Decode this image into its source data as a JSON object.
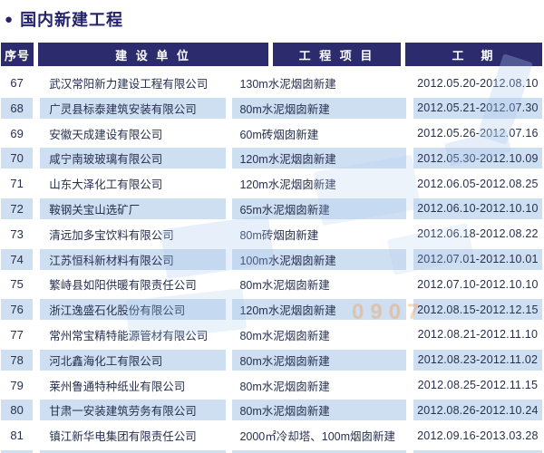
{
  "page": {
    "bullet": "●",
    "title": "国内新建工程"
  },
  "table": {
    "headers": [
      {
        "label": "序号"
      },
      {
        "label": "建 设 单 位"
      },
      {
        "label": "工 程 项 目"
      },
      {
        "label": "工　期"
      }
    ],
    "rows": [
      {
        "no": "67",
        "company": "武汉常阳新力建设工程有限公司",
        "project": "130m水泥烟囱新建",
        "period": "2012.05.20-2012.08.10"
      },
      {
        "no": "68",
        "company": "广灵县标泰建筑安装有限公司",
        "project": "80m水泥烟囱新建",
        "period": "2012.05.21-2012.07.30"
      },
      {
        "no": "69",
        "company": "安徽天成建设有限公司",
        "project": "60m砖烟囱新建",
        "period": "2012.05.26-2012.07.16"
      },
      {
        "no": "70",
        "company": "咸宁南玻玻璃有限公司",
        "project": "120m水泥烟囱新建",
        "period": "2012.05.30-2012.10.09"
      },
      {
        "no": "71",
        "company": "山东大泽化工有限公司",
        "project": "120m水泥烟囱新建",
        "period": "2012.06.05-2012.08.25"
      },
      {
        "no": "72",
        "company": "鞍钢关宝山选矿厂",
        "project": "65m水泥烟囱新建",
        "period": "2012.06.10-2012.10.10"
      },
      {
        "no": "73",
        "company": "清远加多宝饮料有限公司",
        "project": "80m砖烟囱新建",
        "period": "2012.06.18-2012.08.22"
      },
      {
        "no": "74",
        "company": "江苏恒科新材料有限公司",
        "project": "100m水泥烟囱新建",
        "period": "2012.07.01-2012.10.01"
      },
      {
        "no": "75",
        "company": "繁峙县如阳供暖有限责任公司",
        "project": "80m水泥烟囱新建",
        "period": "2012.07.10-2012.10.10"
      },
      {
        "no": "76",
        "company": "浙江逸盛石化股份有限公司",
        "project": "120m水泥烟囱新建",
        "period": "2012.08.15-2012.12.15"
      },
      {
        "no": "77",
        "company": "常州常宝精特能源管材有限公司",
        "project": "80m水泥烟囱新建",
        "period": "2012.08.21-2012.11.10"
      },
      {
        "no": "78",
        "company": "河北鑫海化工有限公司",
        "project": "80m水泥烟囱新建",
        "period": "2012.08.23-2012.11.02"
      },
      {
        "no": "79",
        "company": "莱州鲁通特种纸业有限公司",
        "project": "80m水泥烟囱新建",
        "period": "2012.08.25-2012.11.15"
      },
      {
        "no": "80",
        "company": "甘肃一安装建筑劳务有限公司",
        "project": "80m水泥烟囱新建",
        "period": "2012.08.26-2012.10.24"
      },
      {
        "no": "81",
        "company": "镇江新华电集团有限责任公司",
        "project": "2000㎡冷却塔、100m烟囱新建",
        "period": "2012.09.16-2013.03.28"
      }
    ]
  },
  "watermark": {
    "digits_fragment": "0907"
  },
  "colors": {
    "header_bg": "#2b2b6e",
    "header_text": "#ffffff",
    "stripe": "#cfdff2",
    "title": "#23236b",
    "body_text": "#26304f",
    "watermark_digits": "#f09646"
  }
}
